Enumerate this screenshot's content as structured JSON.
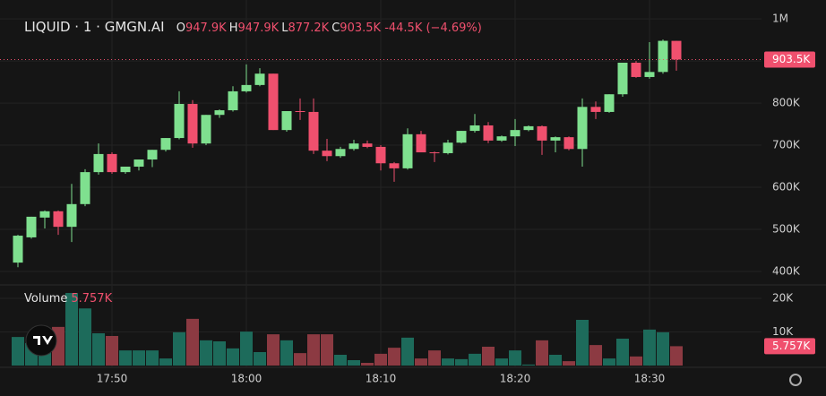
{
  "chart_data": {
    "type": "candlestick",
    "title": "LIQUID · 1 · GMGN.AI",
    "ohlc_legend": [
      {
        "key": "O",
        "value": "947.9K"
      },
      {
        "key": "H",
        "value": "947.9K"
      },
      {
        "key": "L",
        "value": "877.2K"
      },
      {
        "key": "C",
        "value": "903.5K"
      }
    ],
    "change": "-44.5K (−4.69%)",
    "volume_title": "Volume",
    "x": [
      null,
      null,
      null,
      null,
      null,
      null,
      null,
      "17:50",
      null,
      null,
      null,
      null,
      null,
      null,
      null,
      null,
      null,
      "18:00",
      null,
      null,
      null,
      null,
      null,
      null,
      null,
      null,
      null,
      "18:10",
      null,
      null,
      null,
      null,
      null,
      null,
      null,
      null,
      null,
      "18:20",
      null,
      null,
      null,
      null,
      null,
      null,
      null,
      null,
      null,
      "18:30",
      null,
      null
    ],
    "open": [
      421000,
      481000,
      528000,
      543000,
      506000,
      560000,
      636000,
      679000,
      636000,
      649000,
      666000,
      689000,
      717000,
      798000,
      704000,
      772000,
      783000,
      828000,
      843000,
      870000,
      736000,
      781000,
      779000,
      687000,
      674000,
      691000,
      704000,
      696000,
      657000,
      645000,
      726000,
      683000,
      681000,
      706000,
      734000,
      747000,
      711000,
      721000,
      736000,
      745000,
      711000,
      719000,
      691000,
      791000,
      779000,
      821000,
      896000,
      862000,
      874000,
      947900
    ],
    "high": [
      487000,
      530000,
      545000,
      545000,
      608000,
      643000,
      704000,
      683000,
      649000,
      666000,
      689000,
      717000,
      828000,
      807000,
      772000,
      785000,
      840000,
      892000,
      883000,
      870000,
      781000,
      811000,
      811000,
      715000,
      696000,
      713000,
      711000,
      700000,
      660000,
      740000,
      734000,
      685000,
      713000,
      734000,
      774000,
      755000,
      723000,
      762000,
      747000,
      747000,
      721000,
      721000,
      811000,
      804000,
      821000,
      896000,
      900000,
      945000,
      951000,
      947900
    ],
    "low": [
      410000,
      478000,
      502000,
      487000,
      470000,
      555000,
      630000,
      632000,
      632000,
      640000,
      648000,
      685000,
      714000,
      694000,
      700000,
      765000,
      780000,
      825000,
      840000,
      736000,
      732000,
      760000,
      679000,
      662000,
      670000,
      687000,
      693000,
      640000,
      613000,
      642000,
      683000,
      660000,
      678000,
      704000,
      730000,
      705000,
      708000,
      698000,
      733000,
      677000,
      683000,
      688000,
      649000,
      762000,
      777000,
      815000,
      860000,
      858000,
      870000,
      877200
    ],
    "close": [
      485000,
      530000,
      543000,
      506000,
      560000,
      636000,
      679000,
      636000,
      649000,
      666000,
      689000,
      717000,
      798000,
      704000,
      772000,
      783000,
      828000,
      843000,
      870000,
      736000,
      781000,
      779000,
      687000,
      674000,
      691000,
      704000,
      696000,
      657000,
      645000,
      726000,
      683000,
      681000,
      706000,
      734000,
      747000,
      711000,
      721000,
      736000,
      745000,
      711000,
      719000,
      691000,
      791000,
      779000,
      821000,
      896000,
      862000,
      874000,
      948000,
      903500
    ],
    "volume": [
      8500,
      6700,
      6700,
      11500,
      21600,
      17000,
      9600,
      8800,
      4500,
      4500,
      4500,
      2100,
      9900,
      13900,
      7500,
      7200,
      5100,
      10100,
      4000,
      9300,
      7500,
      3700,
      9300,
      9300,
      3200,
      1600,
      800,
      3500,
      5300,
      8300,
      2100,
      4500,
      2100,
      1900,
      3500,
      5600,
      2100,
      4500,
      300,
      7500,
      3200,
      1300,
      13600,
      6100,
      2100,
      8000,
      2700,
      10700,
      9900,
      5757
    ],
    "up_color": "#7fe08f",
    "down_color": "#f0506e",
    "volume_up_color": "#1d6b5b",
    "volume_down_color": "#8c3a42",
    "ylim": [
      368000,
      1045000
    ],
    "yticks": [
      {
        "value": 400000,
        "label": "400K"
      },
      {
        "value": 500000,
        "label": "500K"
      },
      {
        "value": 600000,
        "label": "600K"
      },
      {
        "value": 700000,
        "label": "700K"
      },
      {
        "value": 800000,
        "label": "800K"
      },
      {
        "value": 900000,
        "label": "900K"
      },
      {
        "value": 1000000,
        "label": "1M"
      }
    ],
    "volume_ylim": [
      0,
      24000
    ],
    "volume_yticks": [
      {
        "value": 10000,
        "label": "10K"
      },
      {
        "value": 20000,
        "label": "20K"
      }
    ],
    "last_price": {
      "value": 903500,
      "label": "903.5K"
    },
    "last_volume": {
      "value": 5757,
      "label": "5.757K"
    },
    "grid": true
  }
}
